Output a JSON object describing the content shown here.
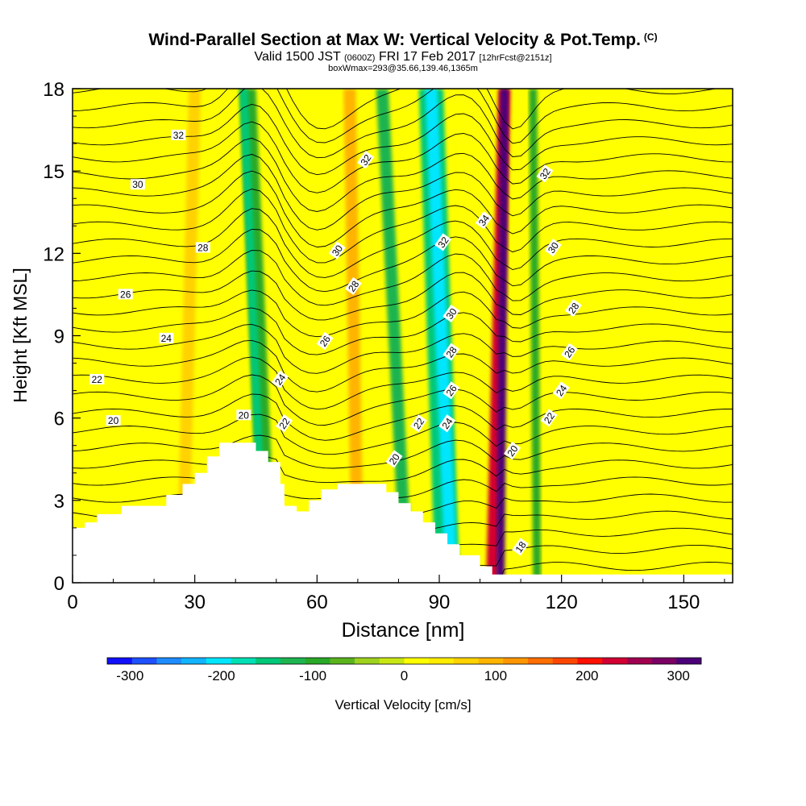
{
  "header": {
    "title": "Wind-Parallel Section at Max W: Vertical Velocity & Pot.Temp.",
    "copyright": "(C)",
    "valid_main": "Valid 1500 JST",
    "valid_utc": "(0600Z)",
    "valid_date": "FRI 17 Feb 2017",
    "valid_fcst": "[12hrFcst@2151z]",
    "boxwmax": "boxWmax=293@35.66,139.46,1365m"
  },
  "chart_data": {
    "type": "heatmap",
    "xlabel": "Distance [nm]",
    "ylabel": "Height [Kft MSL]",
    "xlim": [
      0,
      162
    ],
    "ylim": [
      0,
      18
    ],
    "x_ticks": [
      0,
      30,
      60,
      90,
      120,
      150
    ],
    "y_ticks": [
      0,
      3,
      6,
      9,
      12,
      15,
      18
    ],
    "colorbar": {
      "label": "Vertical Velocity [cm/s]",
      "min": -325,
      "max": 325,
      "tick_values": [
        -300,
        -200,
        -100,
        0,
        100,
        200,
        300
      ],
      "tick_labels": [
        "-300",
        "-200",
        "-100",
        "0",
        "100",
        "200",
        "300"
      ],
      "colors": [
        "#1010ff",
        "#1e50ff",
        "#1e8cff",
        "#12b4ff",
        "#00e6ff",
        "#00e0b4",
        "#00c878",
        "#1eb450",
        "#2aa828",
        "#5ab41e",
        "#9ed21e",
        "#c8e614",
        "#ffff00",
        "#ffec00",
        "#ffd200",
        "#ffb400",
        "#ff9600",
        "#ff6e00",
        "#ff4600",
        "#ff1000",
        "#d20032",
        "#a00050",
        "#7a0064",
        "#4b0078"
      ]
    },
    "velocity_bands": [
      {
        "x_bottom": 48,
        "x_top": 43,
        "width": 4,
        "w": -100
      },
      {
        "x_bottom": 47,
        "x_top": 42,
        "width": 2,
        "w": -150
      },
      {
        "x_bottom": 82,
        "x_top": 76,
        "width": 3,
        "w": -110
      },
      {
        "x_bottom": 92,
        "x_top": 88,
        "width": 6,
        "w": -150
      },
      {
        "x_bottom": 93,
        "x_top": 88,
        "width": 3,
        "w": -200
      },
      {
        "x_bottom": 103,
        "x_top": 106,
        "width": 3,
        "w": 225
      },
      {
        "x_bottom": 105,
        "x_top": 106,
        "width": 2,
        "w": 300
      },
      {
        "x_bottom": 114,
        "x_top": 113,
        "width": 2,
        "w": -90
      },
      {
        "x_bottom": 70,
        "x_top": 68,
        "width": 3,
        "w": 90
      },
      {
        "x_bottom": 27,
        "x_top": 30,
        "width": 3,
        "w": 60
      }
    ],
    "terrain": [
      [
        0,
        2.0
      ],
      [
        3,
        2.2
      ],
      [
        6,
        2.5
      ],
      [
        12,
        2.8
      ],
      [
        23,
        3.2
      ],
      [
        27,
        3.6
      ],
      [
        30,
        4.0
      ],
      [
        33,
        4.6
      ],
      [
        36,
        5.1
      ],
      [
        42,
        5.1
      ],
      [
        45,
        4.8
      ],
      [
        48,
        4.4
      ],
      [
        51,
        3.6
      ],
      [
        52,
        2.8
      ],
      [
        55,
        2.6
      ],
      [
        58,
        3.0
      ],
      [
        61,
        3.4
      ],
      [
        65,
        3.6
      ],
      [
        74,
        3.6
      ],
      [
        77,
        3.3
      ],
      [
        80,
        2.9
      ],
      [
        83,
        2.6
      ],
      [
        86,
        2.2
      ],
      [
        89,
        1.8
      ],
      [
        92,
        1.4
      ],
      [
        95,
        1.0
      ],
      [
        100,
        0.6
      ],
      [
        103,
        0.3
      ],
      [
        162,
        0.3
      ]
    ],
    "isentrope_labels": [
      {
        "text": "32",
        "x": 26,
        "y": 16.3
      },
      {
        "text": "30",
        "x": 16,
        "y": 14.5
      },
      {
        "text": "28",
        "x": 32,
        "y": 12.2
      },
      {
        "text": "26",
        "x": 13,
        "y": 10.5
      },
      {
        "text": "24",
        "x": 23,
        "y": 8.9
      },
      {
        "text": "22",
        "x": 6,
        "y": 7.4
      },
      {
        "text": "20",
        "x": 10,
        "y": 5.9
      },
      {
        "text": "20",
        "x": 42,
        "y": 6.1
      },
      {
        "text": "22",
        "x": 52,
        "y": 5.8
      },
      {
        "text": "24",
        "x": 51,
        "y": 7.4
      },
      {
        "text": "26",
        "x": 62,
        "y": 8.8
      },
      {
        "text": "28",
        "x": 69,
        "y": 10.8
      },
      {
        "text": "30",
        "x": 65,
        "y": 12.1
      },
      {
        "text": "32",
        "x": 72,
        "y": 15.4
      },
      {
        "text": "32",
        "x": 91,
        "y": 12.4
      },
      {
        "text": "34",
        "x": 101,
        "y": 13.2
      },
      {
        "text": "30",
        "x": 93,
        "y": 9.8
      },
      {
        "text": "28",
        "x": 93,
        "y": 8.4
      },
      {
        "text": "26",
        "x": 93,
        "y": 7.0
      },
      {
        "text": "24",
        "x": 92,
        "y": 5.8
      },
      {
        "text": "22",
        "x": 85,
        "y": 5.8
      },
      {
        "text": "20",
        "x": 79,
        "y": 4.5
      },
      {
        "text": "20",
        "x": 108,
        "y": 4.8
      },
      {
        "text": "18",
        "x": 110,
        "y": 1.3
      },
      {
        "text": "32",
        "x": 116,
        "y": 14.9
      },
      {
        "text": "30",
        "x": 118,
        "y": 12.2
      },
      {
        "text": "28",
        "x": 123,
        "y": 10.0
      },
      {
        "text": "26",
        "x": 122,
        "y": 8.4
      },
      {
        "text": "24",
        "x": 120,
        "y": 7.0
      },
      {
        "text": "22",
        "x": 117,
        "y": 6.0
      }
    ]
  }
}
